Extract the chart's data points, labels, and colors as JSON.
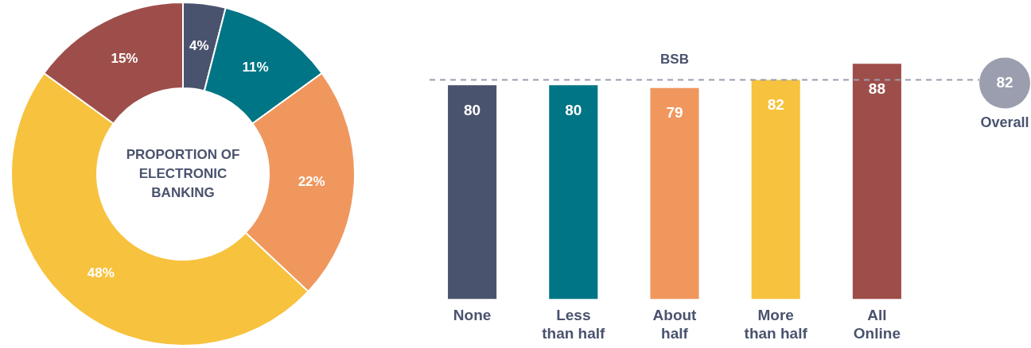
{
  "chart_data": [
    {
      "type": "donut",
      "title": "PROPORTION OF ELECTRONIC BANKING",
      "categories": [
        null,
        null,
        null,
        null,
        null
      ],
      "values": [
        4,
        11,
        22,
        48,
        15
      ],
      "colors": [
        "#4a536e",
        "#007585",
        "#f0975e",
        "#f7c23e",
        "#9e4e4a"
      ],
      "value_labels": [
        "4%",
        "11%",
        "22%",
        "48%",
        "15%"
      ]
    },
    {
      "type": "bar",
      "title": "BSB",
      "categories": [
        "None",
        "Less than half",
        "About half",
        "More than half",
        "All Online"
      ],
      "values": [
        80,
        80,
        79,
        82,
        88
      ],
      "colors": [
        "#4a536e",
        "#007585",
        "#f0975e",
        "#f7c23e",
        "#9e4e4a"
      ],
      "data_labels": true,
      "annotations": [
        "Overall"
      ],
      "ref_lines": [
        {
          "axis": "y",
          "value": 82,
          "label": "82",
          "color": "#9a9eae",
          "line_style": "dashed"
        }
      ]
    }
  ]
}
